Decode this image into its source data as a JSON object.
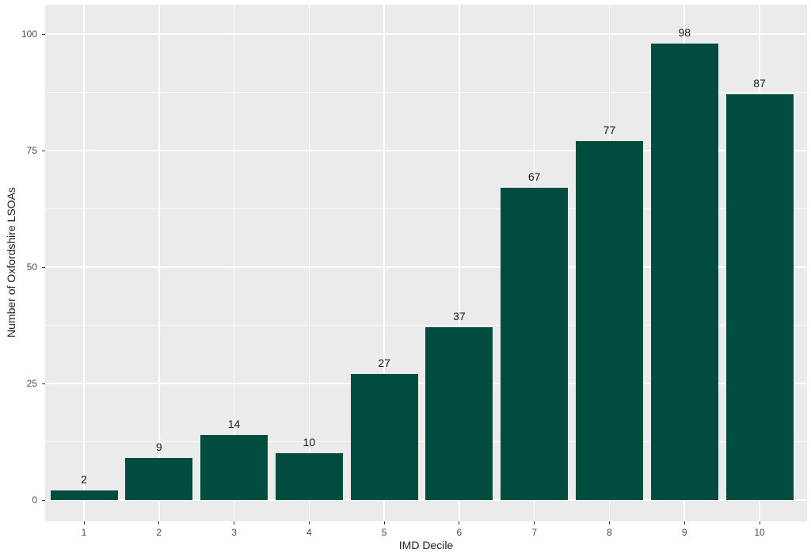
{
  "chart_data": {
    "type": "bar",
    "title": "",
    "xlabel": "IMD Decile",
    "ylabel": "Number of Oxfordshire LSOAs",
    "categories": [
      "1",
      "2",
      "3",
      "4",
      "5",
      "6",
      "7",
      "8",
      "9",
      "10"
    ],
    "values": [
      2,
      9,
      14,
      10,
      27,
      37,
      67,
      77,
      98,
      87
    ],
    "bar_value_labels": [
      "2",
      "9",
      "14",
      "10",
      "27",
      "37",
      "67",
      "77",
      "98",
      "87"
    ],
    "ylim": [
      0,
      100
    ],
    "yticks": [
      0,
      25,
      50,
      75,
      100
    ],
    "ytick_labels": [
      "0",
      "25",
      "50",
      "75",
      "100"
    ],
    "yminor": [
      12.5,
      37.5,
      62.5,
      87.5
    ],
    "grid": "horizontal major+minor, vertical major at category centers",
    "legend": "none",
    "colors": {
      "bar_fill": "#004D40",
      "panel_background": "#EBEBEB",
      "grid_major": "#FFFFFF",
      "grid_minor": "#FFFFFF",
      "tick_mark": "#333333",
      "tick_label": "#4D4D4D",
      "axis_title": "#1F1F1F",
      "value_label": "#1A1A1A",
      "figure_background": "#FFFFFF"
    }
  }
}
